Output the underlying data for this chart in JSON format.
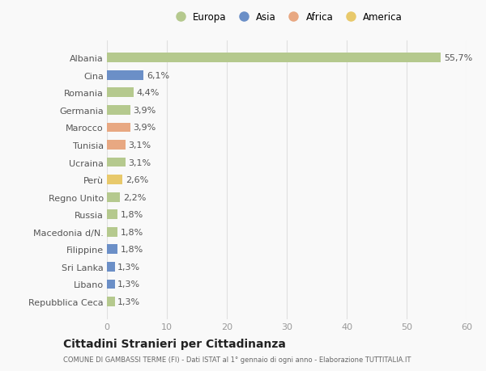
{
  "categories": [
    "Albania",
    "Cina",
    "Romania",
    "Germania",
    "Marocco",
    "Tunisia",
    "Ucraina",
    "Perù",
    "Regno Unito",
    "Russia",
    "Macedonia d/N.",
    "Filippine",
    "Sri Lanka",
    "Libano",
    "Repubblica Ceca"
  ],
  "values": [
    55.7,
    6.1,
    4.4,
    3.9,
    3.9,
    3.1,
    3.1,
    2.6,
    2.2,
    1.8,
    1.8,
    1.8,
    1.3,
    1.3,
    1.3
  ],
  "labels": [
    "55,7%",
    "6,1%",
    "4,4%",
    "3,9%",
    "3,9%",
    "3,1%",
    "3,1%",
    "2,6%",
    "2,2%",
    "1,8%",
    "1,8%",
    "1,8%",
    "1,3%",
    "1,3%",
    "1,3%"
  ],
  "colors": [
    "#b5c98e",
    "#6b8fc7",
    "#b5c98e",
    "#b5c98e",
    "#e8a882",
    "#e8a882",
    "#b5c98e",
    "#e8c96b",
    "#b5c98e",
    "#b5c98e",
    "#b5c98e",
    "#6b8fc7",
    "#6b8fc7",
    "#6b8fc7",
    "#b5c98e"
  ],
  "legend_labels": [
    "Europa",
    "Asia",
    "Africa",
    "America"
  ],
  "legend_colors": [
    "#b5c98e",
    "#6b8fc7",
    "#e8a882",
    "#e8c96b"
  ],
  "title": "Cittadini Stranieri per Cittadinanza",
  "subtitle": "COMUNE DI GAMBASSI TERME (FI) - Dati ISTAT al 1° gennaio di ogni anno - Elaborazione TUTTITALIA.IT",
  "xlim": [
    0,
    60
  ],
  "xticks": [
    0,
    10,
    20,
    30,
    40,
    50,
    60
  ],
  "background_color": "#f9f9f9",
  "grid_color": "#e0e0e0",
  "bar_height": 0.55,
  "label_fontsize": 8,
  "ytick_fontsize": 8,
  "xtick_fontsize": 8
}
